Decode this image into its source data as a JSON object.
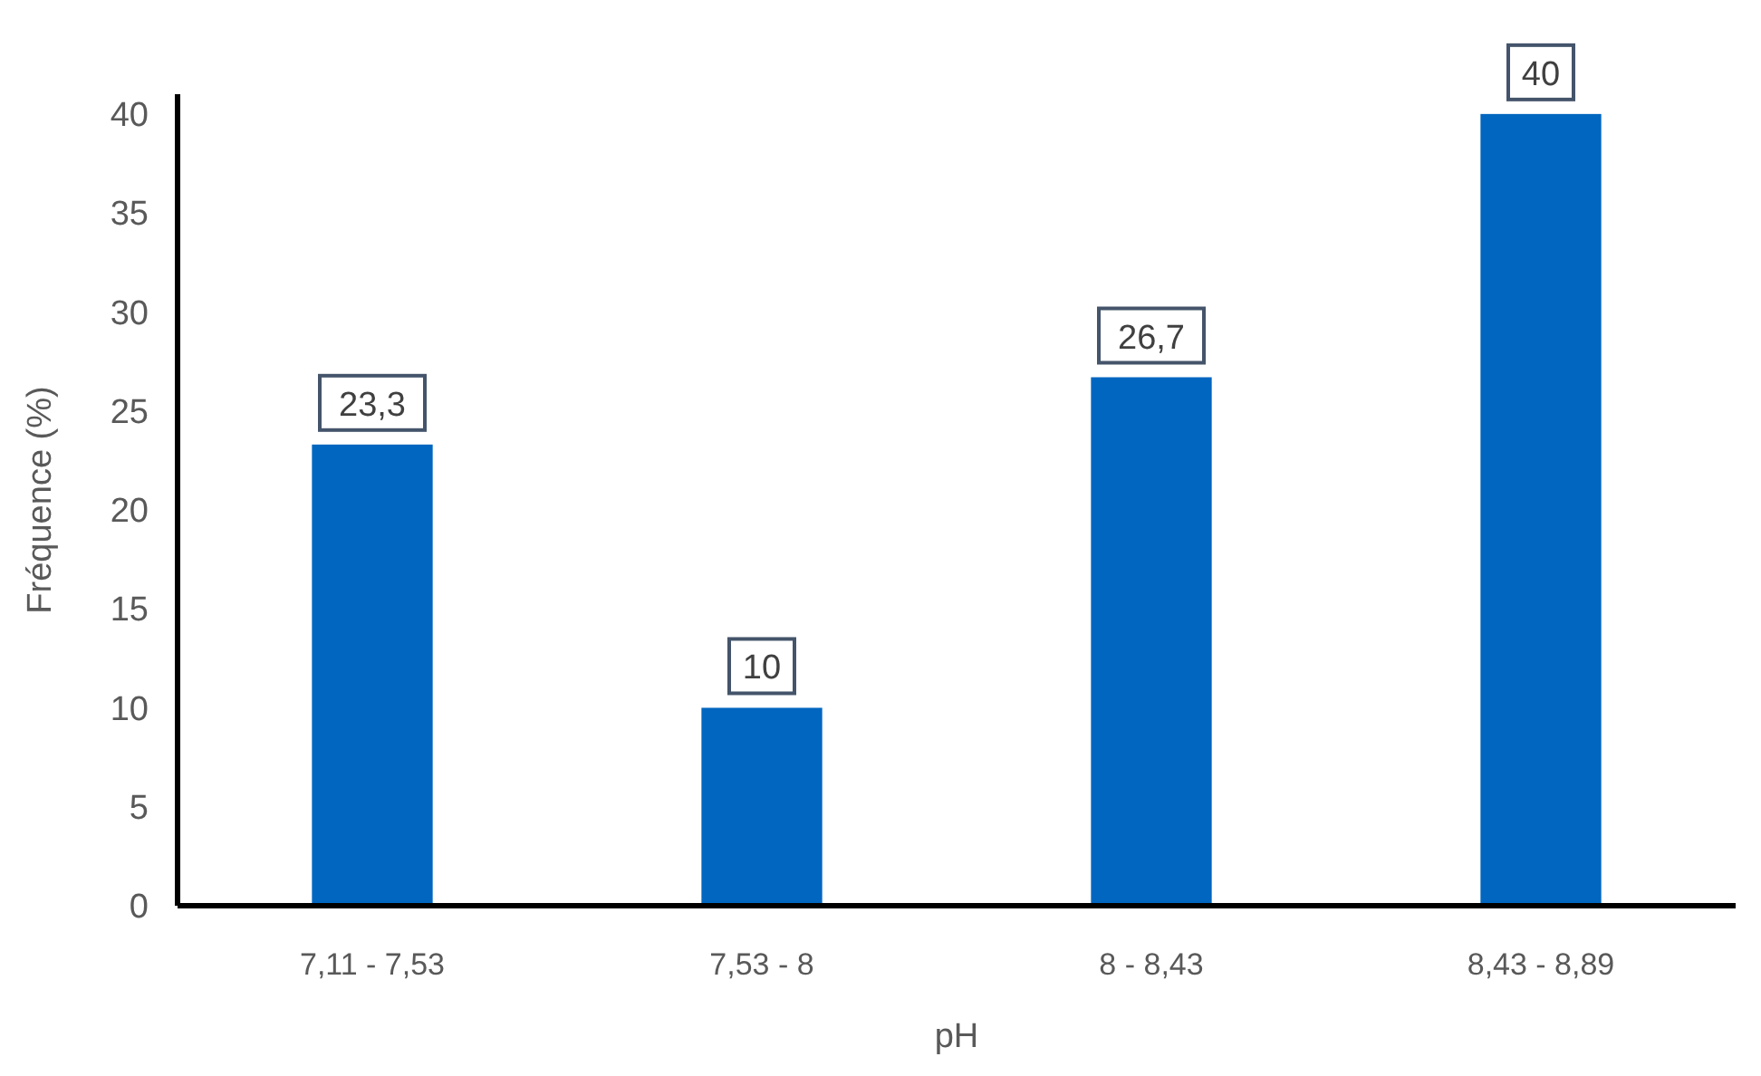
{
  "chart_data": {
    "type": "bar",
    "xlabel": "pH",
    "ylabel": "Fréquence (%)",
    "categories": [
      "7,11 - 7,53",
      "7,53 - 8",
      "8 - 8,43",
      "8,43 - 8,89"
    ],
    "values": [
      23.3,
      10,
      26.7,
      40
    ],
    "value_labels": [
      "23,3",
      "10",
      "26,7",
      "40"
    ],
    "color": "#0066c0",
    "ylim": [
      0,
      41
    ],
    "yticks": [
      0,
      5,
      10,
      15,
      20,
      25,
      30,
      35,
      40
    ],
    "grid": false
  }
}
